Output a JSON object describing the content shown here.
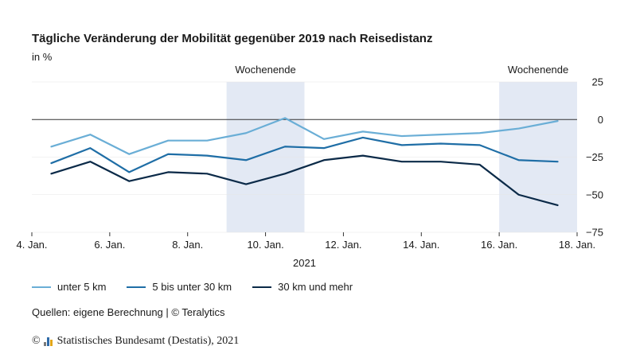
{
  "title": "Tägliche Veränderung der Mobilität gegenüber 2019 nach Reisedistanz",
  "unit": "in %",
  "source": "Quellen: eigene Berechnung | © Teralytics",
  "footer": {
    "copyright_symbol": "©",
    "text": "Statistisches Bundesamt (Destatis), 2021",
    "logo_colors": [
      "#7a7a7a",
      "#2f6aa8",
      "#e2a619"
    ]
  },
  "colors": {
    "series": [
      "#6aaed6",
      "#1f6ea6",
      "#0b2a48"
    ],
    "weekend_band": "#e3e9f4",
    "zero_line": "#333333",
    "grid": "#e6e6e6"
  },
  "chart_data": {
    "type": "line",
    "title": "Tägliche Veränderung der Mobilität gegenüber 2019 nach Reisedistanz",
    "ylabel": "in %",
    "xlabel": "2021",
    "ylim": [
      -75,
      25
    ],
    "yticks": [
      25,
      0,
      -25,
      -50,
      -75
    ],
    "xlim": [
      4,
      18
    ],
    "xticks": [
      {
        "day": 4,
        "label": "4. Jan."
      },
      {
        "day": 6,
        "label": "6. Jan."
      },
      {
        "day": 8,
        "label": "8. Jan."
      },
      {
        "day": 10,
        "label": "10. Jan."
      },
      {
        "day": 12,
        "label": "12. Jan."
      },
      {
        "day": 14,
        "label": "14. Jan."
      },
      {
        "day": 16,
        "label": "16. Jan."
      },
      {
        "day": 18,
        "label": "18. Jan."
      }
    ],
    "x": [
      4.5,
      5.5,
      6.5,
      7.5,
      8.5,
      9.5,
      10.5,
      11.5,
      12.5,
      13.5,
      14.5,
      15.5,
      16.5,
      17.5
    ],
    "shaded_regions": [
      {
        "label": "Wochenende",
        "start": 9.0,
        "end": 11.0
      },
      {
        "label": "Wochenende",
        "start": 16.0,
        "end": 18.0
      }
    ],
    "series": [
      {
        "name": "unter 5 km",
        "values": [
          -18,
          -10,
          -23,
          -14,
          -14,
          -9,
          1,
          -13,
          -8,
          -11,
          -10,
          -9,
          -6,
          -1
        ]
      },
      {
        "name": "5 bis unter 30 km",
        "values": [
          -29,
          -19,
          -35,
          -23,
          -24,
          -27,
          -18,
          -19,
          -12,
          -17,
          -16,
          -17,
          -27,
          -28
        ]
      },
      {
        "name": "30 km und mehr",
        "values": [
          -36,
          -28,
          -41,
          -35,
          -36,
          -43,
          -36,
          -27,
          -24,
          -28,
          -28,
          -30,
          -50,
          -57
        ]
      }
    ]
  }
}
